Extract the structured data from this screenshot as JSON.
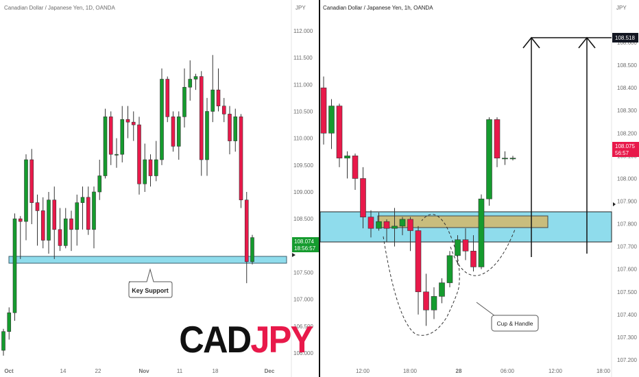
{
  "colors": {
    "up": "#159b2e",
    "down": "#e8194a",
    "zone": "#8fdcec",
    "zone_border": "#222222",
    "handle_zone": "#c9bd7d",
    "axis_text": "#6b6b6b",
    "badge_dark": "#131722"
  },
  "left_chart": {
    "title": "Canadian Dollar / Japanese Yen, 1D, OANDA",
    "axis_unit": "JPY",
    "y_ticks": [
      "112.000",
      "111.500",
      "111.000",
      "110.500",
      "110.000",
      "109.500",
      "109.000",
      "108.500",
      "108.000",
      "107.500",
      "107.000",
      "106.500",
      "106.000"
    ],
    "x_ticks": [
      "Oct",
      "14",
      "22",
      "Nov",
      "11",
      "18",
      "Dec"
    ],
    "price_badge": {
      "price": "108.074",
      "countdown": "18:56:57"
    },
    "annotation": "Key Support",
    "logo": {
      "part1": "CAD",
      "part2": "JPY"
    }
  },
  "right_chart": {
    "title": "Canadian Dollar / Japanese Yen, 1h, OANDA",
    "axis_unit": "JPY",
    "y_ticks": [
      "108.600",
      "108.500",
      "108.400",
      "108.300",
      "108.200",
      "108.100",
      "108.000",
      "107.900",
      "107.800",
      "107.700",
      "107.600",
      "107.500",
      "107.400",
      "107.300",
      "107.200"
    ],
    "x_ticks": [
      "12:00",
      "18:00",
      "28",
      "06:00",
      "12:00",
      "18:00"
    ],
    "target_badge": "108.518",
    "price_badge": {
      "price": "108.075",
      "countdown": "56:57"
    },
    "annotation": "Cup & Handle"
  },
  "chart_data": [
    {
      "type": "candlestick",
      "title": "Canadian Dollar / Japanese Yen, 1D, OANDA",
      "ylim": [
        105.9,
        112.4
      ],
      "support_zone": [
        107.62,
        107.74
      ],
      "candles": [
        [
          106.05,
          106.4,
          105.95,
          106.45
        ],
        [
          106.4,
          106.75,
          106.25,
          106.85
        ],
        [
          106.75,
          108.5,
          106.6,
          108.6
        ],
        [
          108.5,
          108.45,
          107.75,
          108.55
        ],
        [
          108.45,
          109.6,
          108.1,
          109.7
        ],
        [
          109.6,
          108.8,
          108.4,
          109.8
        ],
        [
          108.8,
          108.65,
          108.0,
          108.95
        ],
        [
          108.65,
          108.1,
          107.95,
          108.9
        ],
        [
          108.1,
          108.85,
          107.85,
          109.0
        ],
        [
          108.85,
          108.3,
          107.75,
          109.1
        ],
        [
          108.3,
          108.0,
          107.9,
          108.7
        ],
        [
          108.0,
          108.5,
          107.95,
          108.7
        ],
        [
          108.5,
          108.3,
          107.9,
          108.65
        ],
        [
          108.3,
          108.8,
          108.0,
          108.95
        ],
        [
          108.8,
          108.9,
          108.3,
          109.1
        ],
        [
          108.9,
          108.3,
          108.2,
          109.1
        ],
        [
          108.3,
          109.0,
          107.95,
          109.1
        ],
        [
          109.0,
          109.3,
          108.85,
          109.6
        ],
        [
          109.3,
          110.4,
          109.25,
          110.55
        ],
        [
          110.4,
          109.7,
          109.5,
          110.5
        ],
        [
          109.7,
          109.7,
          109.45,
          110.0
        ],
        [
          109.7,
          110.35,
          109.55,
          110.6
        ],
        [
          110.35,
          110.3,
          110.0,
          110.6
        ],
        [
          110.3,
          110.25,
          109.95,
          110.5
        ],
        [
          110.25,
          109.15,
          108.95,
          110.4
        ],
        [
          109.15,
          109.6,
          109.0,
          109.9
        ],
        [
          109.6,
          109.3,
          109.1,
          109.7
        ],
        [
          109.3,
          109.6,
          109.2,
          109.95
        ],
        [
          109.6,
          111.1,
          109.5,
          111.3
        ],
        [
          111.1,
          110.4,
          110.3,
          111.15
        ],
        [
          110.4,
          109.85,
          109.75,
          110.5
        ],
        [
          109.85,
          110.4,
          109.6,
          110.5
        ],
        [
          110.4,
          110.95,
          110.2,
          111.3
        ],
        [
          110.95,
          111.1,
          110.7,
          111.45
        ],
        [
          111.1,
          111.15,
          110.9,
          111.2
        ],
        [
          111.15,
          109.6,
          109.3,
          111.25
        ],
        [
          109.6,
          110.5,
          109.3,
          110.75
        ],
        [
          110.5,
          110.9,
          110.3,
          111.55
        ],
        [
          110.9,
          110.6,
          110.5,
          111.3
        ],
        [
          110.6,
          110.45,
          110.3,
          110.75
        ],
        [
          110.45,
          109.95,
          109.7,
          110.6
        ],
        [
          109.95,
          110.4,
          109.75,
          110.55
        ],
        [
          110.4,
          108.85,
          108.7,
          110.45
        ],
        [
          108.85,
          107.7,
          107.3,
          109.0
        ],
        [
          107.7,
          108.15,
          107.65,
          108.2
        ]
      ]
    },
    {
      "type": "candlestick",
      "title": "Canadian Dollar / Japanese Yen, 1h, OANDA",
      "ylim": [
        107.17,
        108.67
      ],
      "zone": [
        107.69,
        107.81
      ],
      "handle_zone": [
        107.74,
        107.79
      ],
      "target": 108.518,
      "candles": [
        [
          108.4,
          108.2,
          108.15,
          108.45
        ],
        [
          108.2,
          108.32,
          108.13,
          108.35
        ],
        [
          108.32,
          108.09,
          108.05,
          108.33
        ],
        [
          108.09,
          108.1,
          108.0,
          108.12
        ],
        [
          108.1,
          108.0,
          107.95,
          108.11
        ],
        [
          108.0,
          107.83,
          107.78,
          108.05
        ],
        [
          107.83,
          107.78,
          107.74,
          107.86
        ],
        [
          107.78,
          107.81,
          107.77,
          107.85
        ],
        [
          107.81,
          107.78,
          107.72,
          107.82
        ],
        [
          107.78,
          107.79,
          107.7,
          107.87
        ],
        [
          107.79,
          107.82,
          107.75,
          107.83
        ],
        [
          107.82,
          107.77,
          107.68,
          107.83
        ],
        [
          107.77,
          107.5,
          107.4,
          107.79
        ],
        [
          107.5,
          107.42,
          107.35,
          107.58
        ],
        [
          107.42,
          107.48,
          107.38,
          107.52
        ],
        [
          107.48,
          107.54,
          107.45,
          107.56
        ],
        [
          107.54,
          107.66,
          107.52,
          107.68
        ],
        [
          107.66,
          107.73,
          107.62,
          107.75
        ],
        [
          107.73,
          107.68,
          107.64,
          107.78
        ],
        [
          107.68,
          107.61,
          107.59,
          107.75
        ],
        [
          107.61,
          107.91,
          107.6,
          107.93
        ],
        [
          107.91,
          108.26,
          107.88,
          108.27
        ],
        [
          108.26,
          108.09,
          108.05,
          108.27
        ],
        [
          108.09,
          108.09,
          108.06,
          108.12
        ],
        [
          108.09,
          108.09,
          108.08,
          108.1
        ]
      ]
    }
  ]
}
